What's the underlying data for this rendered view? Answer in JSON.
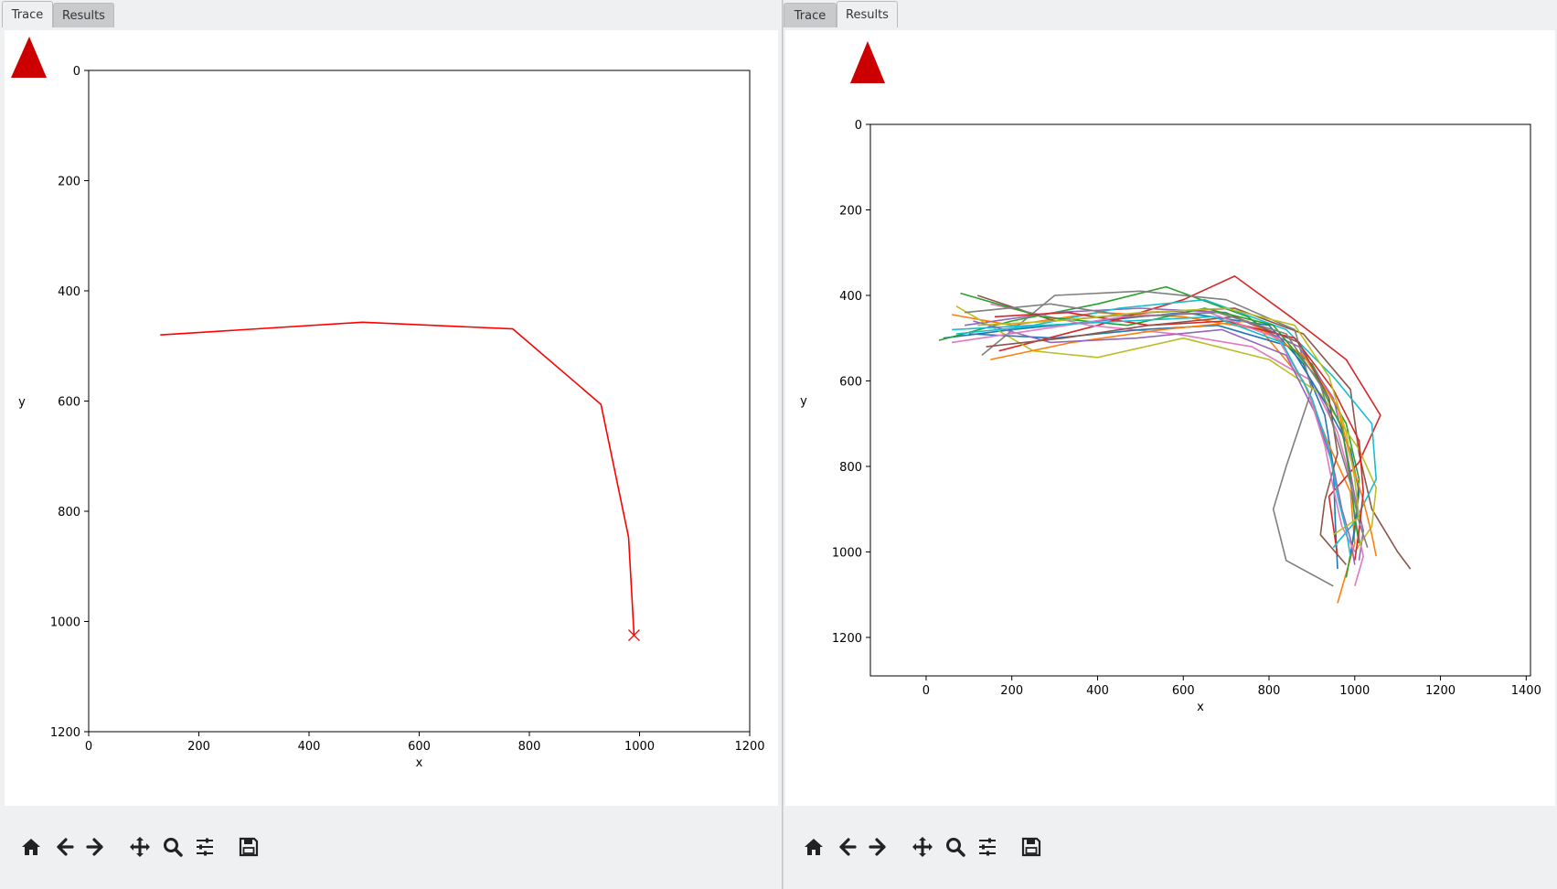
{
  "left_pane": {
    "tabs": [
      {
        "label": "Trace",
        "active": true
      },
      {
        "label": "Results",
        "active": false
      }
    ],
    "logo_icon": "red-triangle-logo"
  },
  "right_pane": {
    "tabs": [
      {
        "label": "Trace",
        "active": false
      },
      {
        "label": "Results",
        "active": true
      }
    ],
    "logo_icon": "red-triangle-logo"
  },
  "toolbar_icons": [
    "home-icon",
    "back-arrow-icon",
    "forward-arrow-icon",
    "pan-icon",
    "zoom-icon",
    "configure-subplots-icon",
    "save-icon"
  ],
  "colors": {
    "logo": "#cc0000",
    "trace": "#ff0000"
  },
  "chart_data": [
    {
      "type": "line",
      "title": "",
      "xlabel": "x",
      "ylabel": "y",
      "xlim": [
        0,
        1200
      ],
      "ylim": [
        1200,
        0
      ],
      "y_inverted": true,
      "xticks": [
        "0",
        "200",
        "400",
        "600",
        "800",
        "1000",
        "1200"
      ],
      "yticks": [
        "0",
        "200",
        "400",
        "600",
        "800",
        "1000",
        "1200"
      ],
      "series": [
        {
          "color": "#ff0000",
          "x": [
            130,
            497,
            770,
            930,
            980,
            990
          ],
          "y": [
            480,
            457,
            469,
            606,
            847,
            1025
          ],
          "end_marker": "x"
        }
      ],
      "grid": false
    },
    {
      "type": "line",
      "title": "",
      "xlabel": "x",
      "ylabel": "y",
      "xlim": [
        -130,
        1410
      ],
      "ylim": [
        1290,
        0
      ],
      "y_inverted": true,
      "xticks": [
        "0",
        "200",
        "400",
        "600",
        "800",
        "1000",
        "1200",
        "1400"
      ],
      "yticks": [
        "0",
        "200",
        "400",
        "600",
        "800",
        "1000",
        "1200"
      ],
      "grid": false,
      "series": [
        {
          "color": "#1f77b4",
          "x": [
            40,
            200,
            400,
            600,
            800,
            880,
            930,
            950,
            955,
            960
          ],
          "y": [
            500,
            480,
            460,
            440,
            470,
            560,
            680,
            800,
            940,
            1040
          ]
        },
        {
          "color": "#ff7f0e",
          "x": [
            60,
            200,
            400,
            600,
            780,
            880,
            940,
            990,
            1000,
            960
          ],
          "y": [
            445,
            470,
            440,
            450,
            480,
            600,
            750,
            860,
            980,
            1120
          ]
        },
        {
          "color": "#2ca02c",
          "x": [
            30,
            200,
            400,
            560,
            750,
            900,
            980,
            1010,
            1000,
            980
          ],
          "y": [
            505,
            460,
            420,
            380,
            450,
            560,
            700,
            830,
            950,
            1060
          ]
        },
        {
          "color": "#d62728",
          "x": [
            170,
            400,
            600,
            720,
            850,
            980,
            1060,
            1010,
            940,
            960
          ],
          "y": [
            530,
            470,
            410,
            355,
            450,
            550,
            680,
            790,
            870,
            1010
          ]
        },
        {
          "color": "#9467bd",
          "x": [
            90,
            300,
            500,
            700,
            870,
            950,
            980,
            1000,
            1020,
            1010
          ],
          "y": [
            470,
            440,
            430,
            440,
            520,
            640,
            760,
            870,
            950,
            1020
          ]
        },
        {
          "color": "#8c564b",
          "x": [
            120,
            300,
            520,
            720,
            880,
            990,
            1010,
            1040,
            1100,
            1130
          ],
          "y": [
            400,
            460,
            440,
            430,
            490,
            620,
            770,
            900,
            1000,
            1040
          ]
        },
        {
          "color": "#e377c2",
          "x": [
            150,
            380,
            580,
            760,
            900,
            960,
            990,
            1000,
            1020,
            1000
          ],
          "y": [
            420,
            470,
            490,
            520,
            600,
            720,
            830,
            920,
            1010,
            1080
          ]
        },
        {
          "color": "#7f7f7f",
          "x": [
            130,
            300,
            500,
            700,
            860,
            900,
            840,
            810,
            840,
            950
          ],
          "y": [
            540,
            400,
            390,
            410,
            480,
            620,
            800,
            900,
            1020,
            1080
          ]
        },
        {
          "color": "#bcbd22",
          "x": [
            70,
            250,
            400,
            600,
            800,
            920,
            1010,
            1050,
            1040,
            1000
          ],
          "y": [
            425,
            530,
            545,
            500,
            550,
            630,
            760,
            850,
            940,
            1000
          ]
        },
        {
          "color": "#17becf",
          "x": [
            60,
            250,
            450,
            650,
            840,
            950,
            1040,
            1050,
            1000,
            950
          ],
          "y": [
            480,
            470,
            430,
            410,
            480,
            590,
            700,
            830,
            930,
            990
          ]
        },
        {
          "color": "#1f77b4",
          "x": [
            100,
            300,
            500,
            680,
            850,
            930,
            990,
            1010,
            1000,
            990
          ],
          "y": [
            490,
            500,
            480,
            470,
            520,
            650,
            760,
            860,
            940,
            1010
          ]
        },
        {
          "color": "#ff7f0e",
          "x": [
            150,
            340,
            550,
            750,
            880,
            960,
            990,
            1020,
            1040,
            1050
          ],
          "y": [
            550,
            510,
            480,
            460,
            540,
            660,
            780,
            880,
            960,
            1010
          ]
        },
        {
          "color": "#2ca02c",
          "x": [
            80,
            270,
            470,
            650,
            810,
            910,
            970,
            990,
            1000,
            1010
          ],
          "y": [
            395,
            450,
            470,
            430,
            470,
            590,
            710,
            830,
            920,
            980
          ]
        },
        {
          "color": "#d62728",
          "x": [
            160,
            330,
            520,
            700,
            860,
            950,
            1010,
            1020,
            1010,
            1000
          ],
          "y": [
            450,
            440,
            470,
            460,
            500,
            620,
            740,
            860,
            950,
            1020
          ]
        },
        {
          "color": "#9467bd",
          "x": [
            110,
            290,
            490,
            690,
            840,
            910,
            950,
            970,
            990,
            1000
          ],
          "y": [
            460,
            510,
            500,
            480,
            540,
            680,
            800,
            900,
            970,
            1030
          ]
        },
        {
          "color": "#8c564b",
          "x": [
            140,
            320,
            520,
            720,
            870,
            940,
            960,
            930,
            920,
            980
          ],
          "y": [
            520,
            500,
            470,
            450,
            510,
            640,
            770,
            880,
            960,
            1030
          ]
        },
        {
          "color": "#e377c2",
          "x": [
            60,
            260,
            460,
            660,
            820,
            890,
            930,
            950,
            970,
            1000
          ],
          "y": [
            510,
            480,
            450,
            440,
            500,
            620,
            750,
            850,
            940,
            1000
          ]
        },
        {
          "color": "#7f7f7f",
          "x": [
            90,
            290,
            480,
            680,
            840,
            920,
            960,
            990,
            1010,
            1030
          ],
          "y": [
            440,
            420,
            450,
            440,
            490,
            610,
            740,
            840,
            930,
            990
          ]
        },
        {
          "color": "#bcbd22",
          "x": [
            120,
            300,
            500,
            700,
            860,
            940,
            980,
            1000,
            1010,
            950
          ],
          "y": [
            470,
            460,
            440,
            430,
            470,
            590,
            720,
            830,
            920,
            960
          ]
        },
        {
          "color": "#17becf",
          "x": [
            70,
            270,
            470,
            670,
            830,
            900,
            940,
            960,
            980,
            990
          ],
          "y": [
            490,
            470,
            460,
            450,
            510,
            640,
            760,
            870,
            950,
            1010
          ]
        }
      ]
    }
  ]
}
